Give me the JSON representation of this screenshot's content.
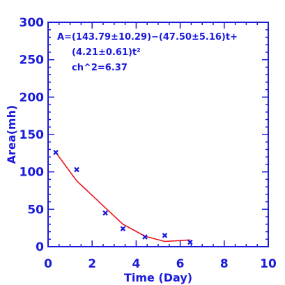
{
  "chart_data": {
    "type": "scatter",
    "xlabel": "Time (Day)",
    "ylabel": "Area(mh)",
    "xlim": [
      0,
      10
    ],
    "ylim": [
      0,
      300
    ],
    "x_ticks": [
      "0",
      "2",
      "4",
      "6",
      "8",
      "10"
    ],
    "y_ticks": [
      "0",
      "50",
      "100",
      "150",
      "200",
      "250",
      "300"
    ],
    "grid": false,
    "colors": {
      "axes": "#1a1adc",
      "points": "#1a1adc",
      "fit": "#e8141b"
    },
    "annotation": {
      "line1": "A=(143.79±10.29)−(47.50±5.16)t+",
      "line2": "(4.21±0.61)t²",
      "line3": "ch^2=6.37"
    },
    "series": [
      {
        "kind": "points",
        "marker": "x",
        "x": [
          0.35,
          1.3,
          2.6,
          3.4,
          4.4,
          5.3,
          6.45
        ],
        "y": [
          126,
          103,
          45,
          24,
          13,
          15,
          6
        ]
      },
      {
        "kind": "fit",
        "x": [
          0.35,
          1.3,
          2.6,
          3.4,
          4.4,
          5.3,
          6.45
        ],
        "y": [
          126,
          88,
          52,
          30,
          14,
          7,
          9
        ]
      }
    ]
  }
}
